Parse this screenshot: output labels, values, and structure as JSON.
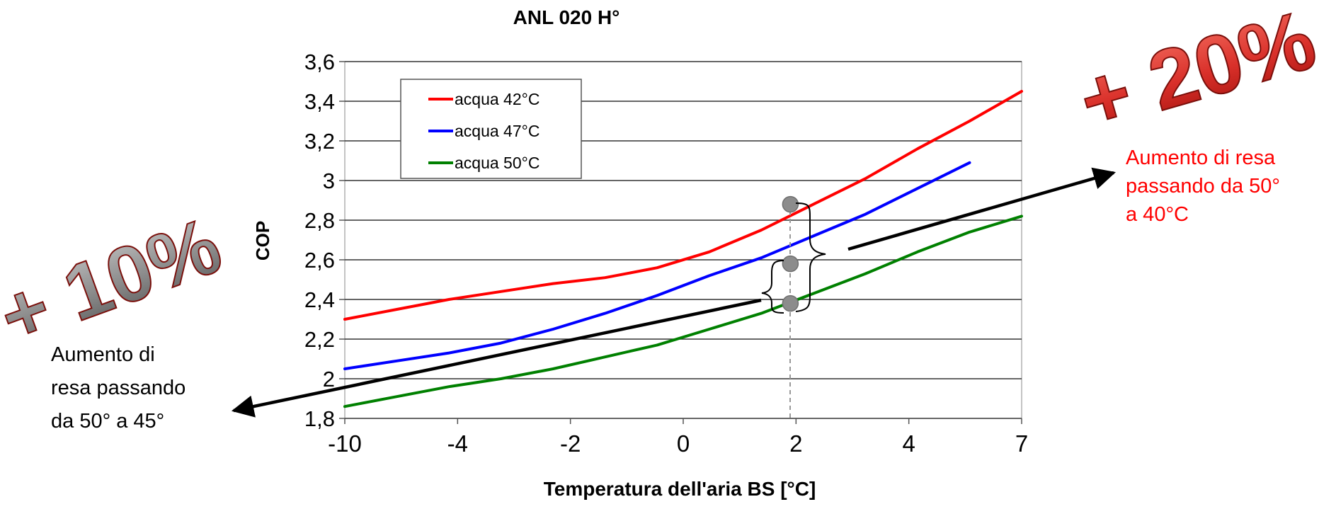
{
  "chart_data": {
    "type": "line",
    "title": "ANL 020 H°",
    "xlabel": "Temperatura dell'aria BS [°C]",
    "ylabel": "COP",
    "x_tick_labels": [
      "-10",
      "-4",
      "-2",
      "0",
      "2",
      "4",
      "7"
    ],
    "y_tick_labels": [
      "1,8",
      "2",
      "2,2",
      "2,4",
      "2,6",
      "2,8",
      "3",
      "3,2",
      "3,4",
      "3,6"
    ],
    "ylim": [
      1.8,
      3.6
    ],
    "grid": "horizontal",
    "legend_position": "top-left",
    "series": [
      {
        "name": "acqua 42°C",
        "color": "#ff0000",
        "values": [
          [
            -10,
            2.3
          ],
          [
            -9,
            2.35
          ],
          [
            -8,
            2.4
          ],
          [
            -7,
            2.44
          ],
          [
            -6,
            2.48
          ],
          [
            -5,
            2.51
          ],
          [
            -4,
            2.56
          ],
          [
            -3,
            2.64
          ],
          [
            -2,
            2.75
          ],
          [
            -1,
            2.88
          ],
          [
            0,
            3.01
          ],
          [
            1,
            3.16
          ],
          [
            2,
            3.3
          ],
          [
            3,
            3.45
          ]
        ]
      },
      {
        "name": "acqua 47°C",
        "color": "#0000ff",
        "values": [
          [
            -10,
            2.05
          ],
          [
            -9,
            2.09
          ],
          [
            -8,
            2.13
          ],
          [
            -7,
            2.18
          ],
          [
            -6,
            2.25
          ],
          [
            -5,
            2.33
          ],
          [
            -4,
            2.42
          ],
          [
            -3,
            2.52
          ],
          [
            -2,
            2.61
          ],
          [
            -1,
            2.72
          ],
          [
            0,
            2.83
          ],
          [
            1,
            2.96
          ],
          [
            2,
            3.09
          ]
        ]
      },
      {
        "name": "acqua 50°C",
        "color": "#008000",
        "values": [
          [
            -10,
            1.86
          ],
          [
            -9,
            1.91
          ],
          [
            -8,
            1.96
          ],
          [
            -7,
            2.0
          ],
          [
            -6,
            2.05
          ],
          [
            -5,
            2.11
          ],
          [
            -4,
            2.17
          ],
          [
            -3,
            2.25
          ],
          [
            -2,
            2.33
          ],
          [
            -1,
            2.43
          ],
          [
            0,
            2.53
          ],
          [
            1,
            2.64
          ],
          [
            2,
            2.74
          ],
          [
            3,
            2.82
          ]
        ]
      }
    ],
    "highlight_points": [
      {
        "x": 1.9,
        "y": 2.88
      },
      {
        "x": 1.9,
        "y": 2.58
      },
      {
        "x": 1.9,
        "y": 2.38
      }
    ]
  },
  "annotations": {
    "plus20": "+ 20%",
    "plus10": "+ 10%",
    "right_text": [
      "Aumento di resa",
      "passando da 50°",
      "a 40°C"
    ],
    "left_text": [
      "Aumento di",
      "resa passando",
      "da 50° a 45°"
    ]
  },
  "colors": {
    "red_text": "#ff0000",
    "pct_red": "#d9302a",
    "pct_gray": "#8c8c8c",
    "marker": "#8c8c8c"
  }
}
